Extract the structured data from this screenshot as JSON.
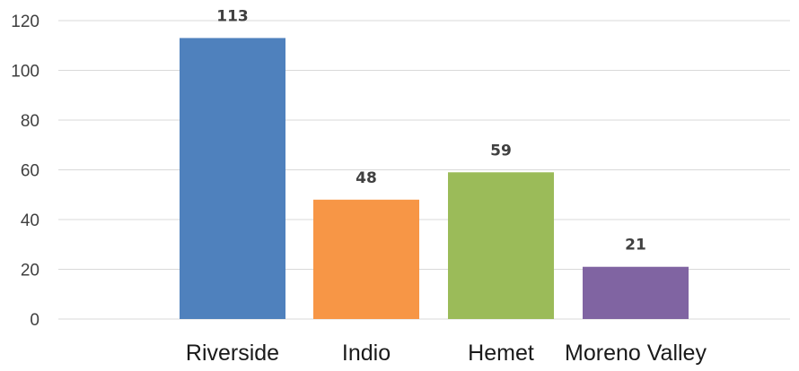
{
  "chart_data": {
    "type": "bar",
    "categories": [
      "Riverside",
      "Indio",
      "Hemet",
      "Moreno Valley"
    ],
    "values": [
      113,
      48,
      59,
      21
    ],
    "colors": [
      "#4f81bd",
      "#f79646",
      "#9bbb59",
      "#8064a2"
    ],
    "data_labels": [
      "113",
      "48",
      "59",
      "21"
    ],
    "y_ticks": [
      0,
      20,
      40,
      60,
      80,
      100,
      120
    ],
    "ylim": [
      0,
      120
    ],
    "grid": true,
    "legend": "none",
    "title": "",
    "xlabel": "",
    "ylabel": ""
  }
}
